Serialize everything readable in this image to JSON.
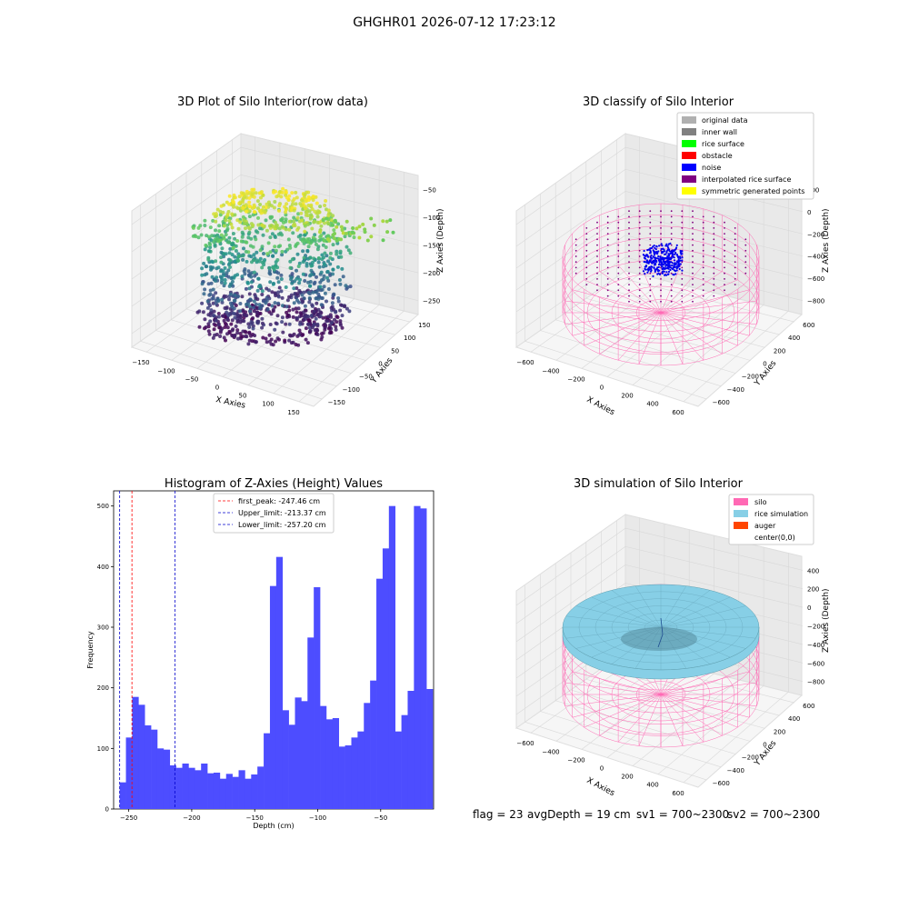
{
  "suptitle": "GHGHR01 2026-07-12 17:23:12",
  "footer": {
    "flag": "flag = 23",
    "avg_depth": "avgDepth = 19 cm",
    "sv1": "sv1 = 700~2300",
    "sv2": "sv2 = 700~2300"
  },
  "colors": {
    "hist_bar": "#4d4dff",
    "first_peak": "#ff0000",
    "limit_lines": "#0000cc",
    "silo": "#ff69b4",
    "rice_simulation": "#87cfe6",
    "auger": "#ff4500",
    "noise": "#0000ee",
    "pane": "#f2f2f2"
  },
  "chart_data": [
    {
      "type": "scatter3d",
      "title": "3D Plot of Silo Interior(row data)",
      "xlabel": "X Axies",
      "ylabel": "Y Axies",
      "zlabel": "Z Axies (Depth)",
      "x_ticks": [
        "−150",
        "−100",
        "−50",
        "0",
        "50",
        "100",
        "150"
      ],
      "y_ticks": [
        "−150",
        "−100",
        "−50",
        "0",
        "50",
        "100",
        "150"
      ],
      "z_ticks": [
        "−250",
        "−200",
        "−150",
        "−100",
        "−50"
      ],
      "xlim": [
        -150,
        150
      ],
      "ylim": [
        -150,
        150
      ],
      "zlim": [
        -260,
        -20
      ],
      "colormap": "viridis"
    },
    {
      "type": "scatter3d",
      "title": "3D classify of Silo Interior",
      "xlabel": "X Axies",
      "ylabel": "Y Axies",
      "zlabel": "Z Axies (Depth)",
      "x_ticks": [
        "−600",
        "−400",
        "−200",
        "0",
        "200",
        "400",
        "600"
      ],
      "y_ticks": [
        "−600",
        "−400",
        "−200",
        "0",
        "200",
        "400",
        "600"
      ],
      "z_ticks": [
        "−800",
        "−600",
        "−400",
        "−200",
        "0",
        "200"
      ],
      "legend_position": "upper-right",
      "legend": [
        {
          "label": "original data",
          "color": "#b0b0b0"
        },
        {
          "label": "inner wall",
          "color": "#808080"
        },
        {
          "label": "rice surface",
          "color": "#00ff00"
        },
        {
          "label": "obstacle",
          "color": "#ff0000"
        },
        {
          "label": "noise",
          "color": "#0000ff"
        },
        {
          "label": "interpolated rice surface",
          "color": "#800080"
        },
        {
          "label": "symmetric generated points",
          "color": "#ffff00"
        }
      ]
    },
    {
      "type": "bar",
      "title": "Histogram of Z-Axies (Height) Values",
      "xlabel": "Depth (cm)",
      "ylabel": "Frequency",
      "xlim": [
        -262,
        -8
      ],
      "ylim": [
        0,
        525
      ],
      "x_ticks": [
        -250,
        -200,
        -150,
        -100,
        -50
      ],
      "y_ticks": [
        0,
        100,
        200,
        300,
        400,
        500
      ],
      "bin_start": -257.2,
      "bin_width": 4.97,
      "values": [
        44,
        118,
        185,
        172,
        138,
        131,
        100,
        98,
        72,
        68,
        75,
        68,
        64,
        75,
        59,
        60,
        50,
        58,
        53,
        64,
        50,
        57,
        70,
        125,
        368,
        416,
        163,
        139,
        184,
        178,
        283,
        366,
        170,
        148,
        150,
        103,
        105,
        118,
        128,
        175,
        212,
        380,
        430,
        500,
        128,
        155,
        195,
        500,
        496,
        198
      ],
      "legend_position": "upper-center",
      "lines": [
        {
          "label": "first_peak: -247.46 cm",
          "x": -247.46,
          "color": "#ff0000"
        },
        {
          "label": "Upper_limit: -213.37 cm",
          "x": -213.37,
          "color": "#0000cc"
        },
        {
          "label": "Lower_limit: -257.20 cm",
          "x": -257.2,
          "color": "#0000cc"
        }
      ]
    },
    {
      "type": "surface3d",
      "title": "3D simulation of Silo Interior",
      "xlabel": "X Axies",
      "ylabel": "Y Axies",
      "zlabel": "Z Axies (Depth)",
      "x_ticks": [
        "−600",
        "−400",
        "−200",
        "0",
        "200",
        "400",
        "600"
      ],
      "y_ticks": [
        "−600",
        "−400",
        "−200",
        "0",
        "200",
        "400",
        "600"
      ],
      "z_ticks": [
        "−800",
        "−600",
        "−400",
        "−200",
        "0",
        "200",
        "400"
      ],
      "legend_position": "upper-right",
      "legend": [
        {
          "label": "silo",
          "color": "#ff69b4"
        },
        {
          "label": "rice simulation",
          "color": "#87cfe6"
        },
        {
          "label": "auger",
          "color": "#ff4500"
        },
        {
          "label": "center(0,0)",
          "color": "#ffffff"
        }
      ]
    }
  ]
}
